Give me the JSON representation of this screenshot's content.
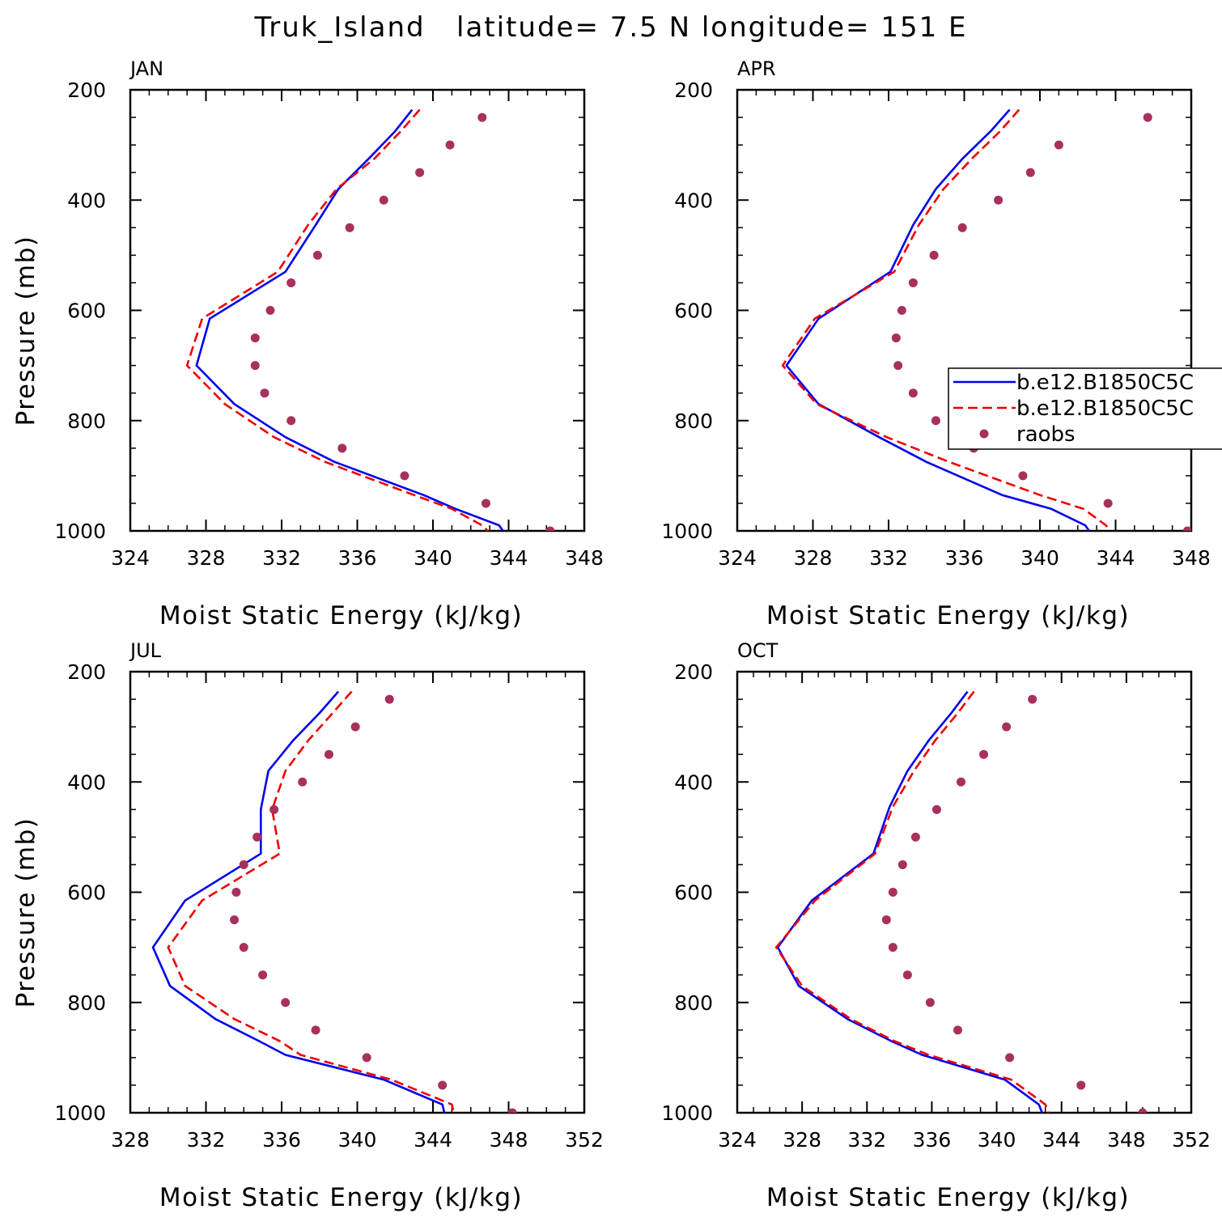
{
  "title": "Truk_Island   latitude= 7.5 N longitude= 151 E",
  "colors": {
    "model1": "#0000ee",
    "model2": "#ee0000",
    "raobs": "#a8305e",
    "frame": "#000000"
  },
  "legend": {
    "entries": [
      {
        "label": "b.e12.B1850C5C",
        "style": "solid",
        "color": "#0000ee"
      },
      {
        "label": "b.e12.B1850C5C",
        "style": "dashed",
        "color": "#ee0000"
      },
      {
        "label": "raobs",
        "style": "marker",
        "color": "#a8305e"
      }
    ]
  },
  "chart_data": [
    {
      "type": "line",
      "panel": "JAN",
      "xlabel": "Moist Static Energy (kJ/kg)",
      "ylabel": "Pressure (mb)",
      "xlim": [
        324,
        348
      ],
      "xticks": [
        324,
        328,
        332,
        336,
        340,
        344,
        348
      ],
      "ylim": [
        200,
        1000
      ],
      "yticks": [
        200,
        400,
        600,
        800,
        1000
      ],
      "series": [
        {
          "name": "b.e12.B1850C5C",
          "style": "solid",
          "pressure": [
            236,
            275,
            325,
            380,
            445,
            530,
            615,
            700,
            770,
            830,
            875,
            935,
            960,
            990,
            1000
          ],
          "values": [
            338.9,
            338.0,
            336.6,
            335.0,
            333.8,
            332.2,
            328.2,
            327.5,
            329.5,
            332.2,
            334.8,
            339.5,
            341.2,
            343.5,
            343.7
          ]
        },
        {
          "name": "b.e12.B1850C5C",
          "style": "dashed",
          "pressure": [
            236,
            275,
            325,
            380,
            445,
            530,
            615,
            700,
            770,
            830,
            875,
            935,
            960,
            990,
            1000
          ],
          "values": [
            339.3,
            338.3,
            336.9,
            334.9,
            333.4,
            331.8,
            327.8,
            327.0,
            329.0,
            331.6,
            334.3,
            339.0,
            341.0,
            342.6,
            342.9
          ]
        },
        {
          "name": "raobs",
          "style": "marker",
          "pressure": [
            250,
            300,
            350,
            400,
            450,
            500,
            550,
            600,
            650,
            700,
            750,
            800,
            850,
            900,
            950,
            1000
          ],
          "values": [
            342.6,
            340.9,
            339.3,
            337.4,
            335.6,
            333.9,
            332.5,
            331.4,
            330.6,
            330.6,
            331.1,
            332.5,
            335.2,
            338.5,
            342.8,
            346.2
          ]
        }
      ]
    },
    {
      "type": "line",
      "panel": "APR",
      "xlabel": "Moist Static Energy (kJ/kg)",
      "ylabel": "",
      "xlim": [
        324,
        348
      ],
      "xticks": [
        324,
        328,
        332,
        336,
        340,
        344,
        348
      ],
      "ylim": [
        200,
        1000
      ],
      "yticks": [
        200,
        400,
        600,
        800,
        1000
      ],
      "series": [
        {
          "name": "b.e12.B1850C5C",
          "style": "solid",
          "pressure": [
            236,
            275,
            325,
            380,
            445,
            530,
            615,
            700,
            770,
            830,
            875,
            935,
            960,
            990,
            1000
          ],
          "values": [
            338.4,
            337.4,
            335.9,
            334.5,
            333.3,
            332.1,
            328.3,
            326.6,
            328.3,
            331.5,
            334.0,
            338.0,
            340.6,
            342.4,
            342.6
          ]
        },
        {
          "name": "b.e12.B1850C5C",
          "style": "dashed",
          "pressure": [
            236,
            275,
            325,
            380,
            445,
            530,
            615,
            700,
            770,
            830,
            875,
            935,
            960,
            990,
            1000
          ],
          "values": [
            338.9,
            337.9,
            336.4,
            334.9,
            333.6,
            332.3,
            328.1,
            326.4,
            328.2,
            331.9,
            335.2,
            340.0,
            342.3,
            343.5,
            343.7
          ]
        },
        {
          "name": "raobs",
          "style": "marker",
          "pressure": [
            250,
            300,
            350,
            400,
            450,
            500,
            550,
            600,
            650,
            700,
            750,
            800,
            850,
            900,
            950,
            1000
          ],
          "values": [
            345.7,
            341.0,
            339.5,
            337.8,
            335.9,
            334.4,
            333.3,
            332.7,
            332.4,
            332.5,
            333.3,
            334.5,
            336.5,
            339.1,
            343.6,
            347.8
          ]
        }
      ]
    },
    {
      "type": "line",
      "panel": "JUL",
      "xlabel": "Moist Static Energy (kJ/kg)",
      "ylabel": "Pressure (mb)",
      "xlim": [
        328,
        352
      ],
      "xticks": [
        328,
        332,
        336,
        340,
        344,
        348,
        352
      ],
      "ylim": [
        200,
        1000
      ],
      "yticks": [
        200,
        400,
        600,
        800,
        1000
      ],
      "series": [
        {
          "name": "b.e12.B1850C5C",
          "style": "solid",
          "pressure": [
            236,
            275,
            325,
            380,
            450,
            530,
            615,
            700,
            770,
            830,
            870,
            895,
            940,
            985,
            1000
          ],
          "values": [
            339.0,
            338.0,
            336.6,
            335.3,
            334.9,
            334.9,
            330.9,
            329.2,
            330.1,
            332.5,
            334.8,
            336.2,
            341.4,
            344.5,
            344.6
          ]
        },
        {
          "name": "b.e12.B1850C5C",
          "style": "dashed",
          "pressure": [
            236,
            275,
            325,
            380,
            450,
            530,
            615,
            700,
            770,
            830,
            870,
            895,
            940,
            985,
            1000
          ],
          "values": [
            339.7,
            338.7,
            337.4,
            336.2,
            335.5,
            335.9,
            331.8,
            330.0,
            330.9,
            333.5,
            335.9,
            337.0,
            341.8,
            345.0,
            345.1
          ]
        },
        {
          "name": "raobs",
          "style": "marker",
          "pressure": [
            250,
            300,
            350,
            400,
            450,
            500,
            550,
            600,
            650,
            700,
            750,
            800,
            850,
            900,
            950,
            1000
          ],
          "values": [
            341.7,
            339.9,
            338.5,
            337.1,
            335.6,
            334.7,
            334.0,
            333.6,
            333.5,
            334.0,
            335.0,
            336.2,
            337.8,
            340.5,
            344.5,
            348.2
          ]
        }
      ]
    },
    {
      "type": "line",
      "panel": "OCT",
      "xlabel": "Moist Static Energy (kJ/kg)",
      "ylabel": "",
      "xlim": [
        324,
        352
      ],
      "xticks": [
        324,
        328,
        332,
        336,
        340,
        344,
        348,
        352
      ],
      "ylim": [
        200,
        1000
      ],
      "yticks": [
        200,
        400,
        600,
        800,
        1000
      ],
      "series": [
        {
          "name": "b.e12.B1850C5C",
          "style": "solid",
          "pressure": [
            236,
            275,
            325,
            380,
            445,
            530,
            615,
            700,
            770,
            830,
            870,
            895,
            940,
            985,
            1000
          ],
          "values": [
            338.2,
            337.2,
            335.8,
            334.5,
            333.4,
            332.4,
            328.6,
            326.5,
            327.8,
            330.8,
            333.5,
            335.4,
            340.5,
            342.6,
            342.8
          ]
        },
        {
          "name": "b.e12.B1850C5C",
          "style": "dashed",
          "pressure": [
            236,
            275,
            325,
            380,
            445,
            530,
            615,
            700,
            770,
            830,
            870,
            895,
            940,
            985,
            1000
          ],
          "values": [
            338.6,
            337.6,
            336.2,
            334.9,
            333.6,
            332.5,
            328.8,
            326.4,
            328.0,
            331.0,
            333.7,
            335.8,
            340.9,
            343.0,
            343.2
          ]
        },
        {
          "name": "raobs",
          "style": "marker",
          "pressure": [
            250,
            300,
            350,
            400,
            450,
            500,
            550,
            600,
            650,
            700,
            750,
            800,
            850,
            900,
            950,
            1000
          ],
          "values": [
            342.2,
            340.6,
            339.2,
            337.8,
            336.3,
            335.0,
            334.2,
            333.6,
            333.2,
            333.6,
            334.5,
            335.9,
            337.6,
            340.8,
            345.2,
            349.0
          ]
        }
      ]
    }
  ]
}
